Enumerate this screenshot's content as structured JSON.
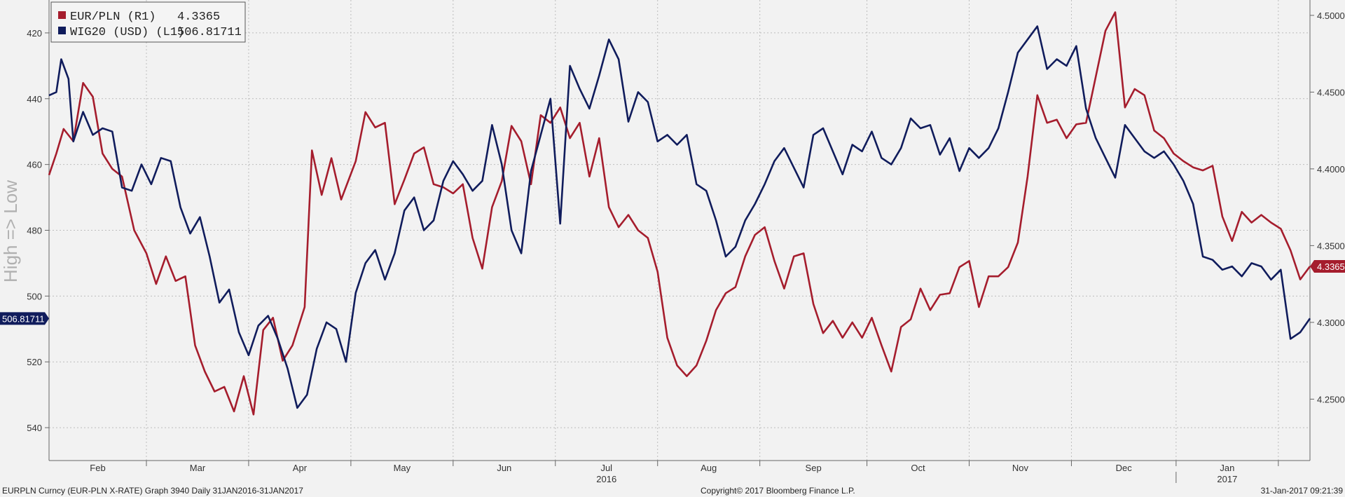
{
  "chart_data": {
    "type": "line",
    "ylabel_left": "High => Low",
    "left_axis": {
      "inverted": true,
      "min": 410,
      "max": 550,
      "ticks": [
        420,
        440,
        460,
        480,
        500,
        520,
        540
      ]
    },
    "right_axis": {
      "min": 4.21,
      "max": 4.51,
      "ticks": [
        "4.2500",
        "4.3000",
        "4.3500",
        "4.4000",
        "4.4500",
        "4.5000"
      ]
    },
    "x_labels": [
      "Feb",
      "Mar",
      "Apr",
      "May",
      "Jun",
      "Jul",
      "Aug",
      "Sep",
      "Oct",
      "Nov",
      "Dec",
      "Jan"
    ],
    "year_labels": [
      "2016",
      "2017"
    ],
    "grid": true,
    "legend_position": "top-left",
    "legend": [
      {
        "label": "EUR/PLN (R1)",
        "value": "4.3365",
        "color": "#a51d2d"
      },
      {
        "label": "WIG20 (USD) (L1)",
        "value": "506.81711",
        "color": "#101c5c"
      }
    ],
    "last_value_tags": {
      "left": "506.81711",
      "right": "4.3365"
    },
    "series": [
      {
        "name": "EUR/PLN (R1)",
        "axis": "right",
        "color": "#a51d2d",
        "knots": [
          [
            0,
            4.396
          ],
          [
            3,
            4.41
          ],
          [
            6,
            4.426
          ],
          [
            10,
            4.418
          ],
          [
            14,
            4.456
          ],
          [
            18,
            4.447
          ],
          [
            22,
            4.41
          ],
          [
            26,
            4.4
          ],
          [
            30,
            4.395
          ],
          [
            35,
            4.36
          ],
          [
            40,
            4.345
          ],
          [
            44,
            4.325
          ],
          [
            48,
            4.343
          ],
          [
            52,
            4.327
          ],
          [
            56,
            4.33
          ],
          [
            60,
            4.285
          ],
          [
            64,
            4.268
          ],
          [
            68,
            4.255
          ],
          [
            72,
            4.258
          ],
          [
            76,
            4.242
          ],
          [
            80,
            4.265
          ],
          [
            84,
            4.24
          ],
          [
            88,
            4.295
          ],
          [
            92,
            4.303
          ],
          [
            96,
            4.275
          ],
          [
            100,
            4.285
          ],
          [
            105,
            4.31
          ],
          [
            108,
            4.412
          ],
          [
            112,
            4.383
          ],
          [
            116,
            4.407
          ],
          [
            120,
            4.38
          ],
          [
            126,
            4.405
          ],
          [
            130,
            4.437
          ],
          [
            134,
            4.427
          ],
          [
            138,
            4.43
          ],
          [
            142,
            4.377
          ],
          [
            146,
            4.393
          ],
          [
            150,
            4.41
          ],
          [
            154,
            4.414
          ],
          [
            158,
            4.39
          ],
          [
            162,
            4.388
          ],
          [
            166,
            4.384
          ],
          [
            170,
            4.39
          ],
          [
            174,
            4.355
          ],
          [
            178,
            4.335
          ],
          [
            182,
            4.375
          ],
          [
            186,
            4.392
          ],
          [
            190,
            4.428
          ],
          [
            194,
            4.418
          ],
          [
            198,
            4.39
          ],
          [
            202,
            4.435
          ],
          [
            206,
            4.43
          ],
          [
            210,
            4.44
          ],
          [
            214,
            4.42
          ],
          [
            218,
            4.43
          ],
          [
            222,
            4.395
          ],
          [
            226,
            4.42
          ],
          [
            230,
            4.375
          ],
          [
            234,
            4.362
          ],
          [
            238,
            4.37
          ],
          [
            242,
            4.36
          ],
          [
            246,
            4.355
          ],
          [
            250,
            4.333
          ],
          [
            254,
            4.29
          ],
          [
            258,
            4.272
          ],
          [
            262,
            4.265
          ],
          [
            266,
            4.272
          ],
          [
            270,
            4.288
          ],
          [
            274,
            4.308
          ],
          [
            278,
            4.319
          ],
          [
            282,
            4.323
          ],
          [
            286,
            4.343
          ],
          [
            290,
            4.357
          ],
          [
            294,
            4.362
          ],
          [
            298,
            4.34
          ],
          [
            302,
            4.322
          ],
          [
            306,
            4.343
          ],
          [
            310,
            4.345
          ],
          [
            314,
            4.312
          ],
          [
            318,
            4.293
          ],
          [
            322,
            4.301
          ],
          [
            326,
            4.29
          ],
          [
            330,
            4.3
          ],
          [
            334,
            4.29
          ],
          [
            338,
            4.303
          ],
          [
            342,
            4.285
          ],
          [
            346,
            4.268
          ],
          [
            350,
            4.297
          ],
          [
            354,
            4.302
          ],
          [
            358,
            4.322
          ],
          [
            362,
            4.308
          ],
          [
            366,
            4.318
          ],
          [
            370,
            4.319
          ],
          [
            374,
            4.336
          ],
          [
            378,
            4.34
          ],
          [
            382,
            4.31
          ],
          [
            386,
            4.33
          ],
          [
            390,
            4.33
          ],
          [
            394,
            4.336
          ],
          [
            398,
            4.352
          ],
          [
            402,
            4.395
          ],
          [
            406,
            4.448
          ],
          [
            410,
            4.43
          ],
          [
            414,
            4.432
          ],
          [
            418,
            4.42
          ],
          [
            422,
            4.429
          ],
          [
            426,
            4.43
          ],
          [
            430,
            4.46
          ],
          [
            434,
            4.49
          ],
          [
            438,
            4.502
          ],
          [
            442,
            4.44
          ],
          [
            446,
            4.452
          ],
          [
            450,
            4.448
          ],
          [
            454,
            4.425
          ],
          [
            458,
            4.42
          ],
          [
            462,
            4.41
          ],
          [
            466,
            4.405
          ],
          [
            470,
            4.401
          ],
          [
            474,
            4.399
          ],
          [
            478,
            4.402
          ],
          [
            482,
            4.369
          ],
          [
            486,
            4.353
          ],
          [
            490,
            4.372
          ],
          [
            494,
            4.365
          ],
          [
            498,
            4.37
          ],
          [
            502,
            4.365
          ],
          [
            506,
            4.361
          ],
          [
            510,
            4.347
          ],
          [
            514,
            4.328
          ],
          [
            518,
            4.3365
          ]
        ]
      },
      {
        "name": "WIG20 (USD) (L1)",
        "axis": "left",
        "color": "#101c5c",
        "knots": [
          [
            0,
            439
          ],
          [
            3,
            438
          ],
          [
            5,
            428
          ],
          [
            8,
            434
          ],
          [
            10,
            453
          ],
          [
            14,
            444
          ],
          [
            18,
            451
          ],
          [
            22,
            449
          ],
          [
            26,
            450
          ],
          [
            30,
            467
          ],
          [
            34,
            468
          ],
          [
            38,
            460
          ],
          [
            42,
            466
          ],
          [
            46,
            458
          ],
          [
            50,
            459
          ],
          [
            54,
            473
          ],
          [
            58,
            481
          ],
          [
            62,
            476
          ],
          [
            66,
            488
          ],
          [
            70,
            502
          ],
          [
            74,
            498
          ],
          [
            78,
            511
          ],
          [
            82,
            518
          ],
          [
            86,
            509
          ],
          [
            90,
            506
          ],
          [
            94,
            513
          ],
          [
            98,
            522
          ],
          [
            102,
            534
          ],
          [
            106,
            530
          ],
          [
            110,
            516
          ],
          [
            114,
            508
          ],
          [
            118,
            510
          ],
          [
            122,
            520
          ],
          [
            126,
            499
          ],
          [
            130,
            490
          ],
          [
            134,
            486
          ],
          [
            138,
            495
          ],
          [
            142,
            487
          ],
          [
            146,
            474
          ],
          [
            150,
            470
          ],
          [
            154,
            480
          ],
          [
            158,
            477
          ],
          [
            162,
            465
          ],
          [
            166,
            459
          ],
          [
            170,
            463
          ],
          [
            174,
            468
          ],
          [
            178,
            465
          ],
          [
            182,
            448
          ],
          [
            186,
            460
          ],
          [
            190,
            480
          ],
          [
            194,
            487
          ],
          [
            198,
            462
          ],
          [
            202,
            451
          ],
          [
            206,
            440
          ],
          [
            210,
            478
          ],
          [
            214,
            430
          ],
          [
            218,
            437
          ],
          [
            222,
            443
          ],
          [
            226,
            433
          ],
          [
            230,
            422
          ],
          [
            234,
            428
          ],
          [
            238,
            447
          ],
          [
            242,
            438
          ],
          [
            246,
            441
          ],
          [
            250,
            453
          ],
          [
            254,
            451
          ],
          [
            258,
            454
          ],
          [
            262,
            451
          ],
          [
            266,
            466
          ],
          [
            270,
            468
          ],
          [
            274,
            477
          ],
          [
            278,
            488
          ],
          [
            282,
            485
          ],
          [
            286,
            477
          ],
          [
            290,
            472
          ],
          [
            294,
            466
          ],
          [
            298,
            459
          ],
          [
            302,
            455
          ],
          [
            306,
            461
          ],
          [
            310,
            467
          ],
          [
            314,
            451
          ],
          [
            318,
            449
          ],
          [
            322,
            456
          ],
          [
            326,
            463
          ],
          [
            330,
            454
          ],
          [
            334,
            456
          ],
          [
            338,
            450
          ],
          [
            342,
            458
          ],
          [
            346,
            460
          ],
          [
            350,
            455
          ],
          [
            354,
            446
          ],
          [
            358,
            449
          ],
          [
            362,
            448
          ],
          [
            366,
            457
          ],
          [
            370,
            452
          ],
          [
            374,
            462
          ],
          [
            378,
            455
          ],
          [
            382,
            458
          ],
          [
            386,
            455
          ],
          [
            390,
            449
          ],
          [
            394,
            438
          ],
          [
            398,
            426
          ],
          [
            402,
            422
          ],
          [
            406,
            418
          ],
          [
            410,
            431
          ],
          [
            414,
            428
          ],
          [
            418,
            430
          ],
          [
            422,
            424
          ],
          [
            426,
            443
          ],
          [
            430,
            452
          ],
          [
            434,
            458
          ],
          [
            438,
            464
          ],
          [
            442,
            448
          ],
          [
            446,
            452
          ],
          [
            450,
            456
          ],
          [
            454,
            458
          ],
          [
            458,
            456
          ],
          [
            462,
            460
          ],
          [
            466,
            465
          ],
          [
            470,
            472
          ],
          [
            474,
            488
          ],
          [
            478,
            489
          ],
          [
            482,
            492
          ],
          [
            486,
            491
          ],
          [
            490,
            494
          ],
          [
            494,
            490
          ],
          [
            498,
            491
          ],
          [
            502,
            495
          ],
          [
            506,
            492
          ],
          [
            510,
            513
          ],
          [
            514,
            511
          ],
          [
            518,
            506.81711
          ]
        ]
      }
    ]
  },
  "footer": {
    "left": "EURPLN Curncy (EUR-PLN X-RATE) Graph 3940  Daily 31JAN2016-31JAN2017",
    "center": "Copyright© 2017 Bloomberg Finance L.P.",
    "right": "31-Jan-2017 09:21:39"
  }
}
